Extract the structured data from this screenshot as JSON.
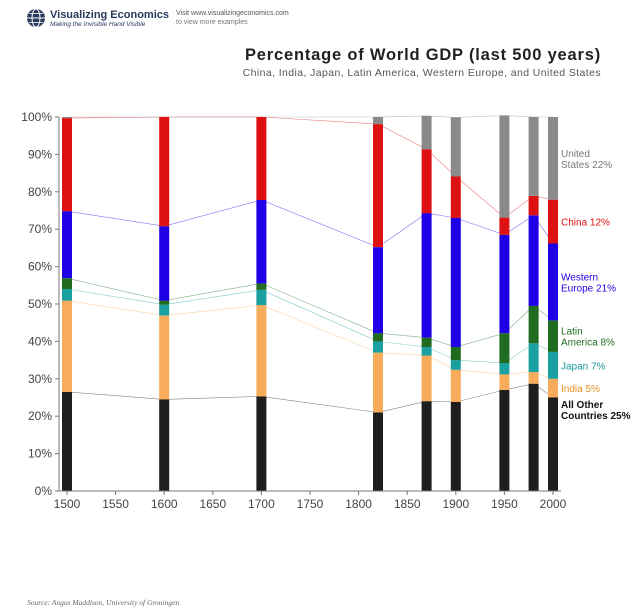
{
  "header": {
    "brand_name": "Visualizing Economics",
    "brand_tagline": "Making the Invisible Hand Visible",
    "visit_url": "Visit www.visualizingeconomics.com",
    "visit_more": "to view more examples"
  },
  "source": "Source: Angus Maddison, University of Groningen",
  "chart_data": {
    "type": "bar",
    "stacked": true,
    "title": "Percentage of World GDP (last 500 years)",
    "subtitle": "China, India, Japan, Latin America, Western Europe, and United States",
    "xlabel": "",
    "ylabel": "",
    "x": [
      1500,
      1600,
      1700,
      1820,
      1870,
      1900,
      1950,
      1980,
      2000
    ],
    "x_ticks": [
      1500,
      1550,
      1600,
      1650,
      1700,
      1750,
      1800,
      1850,
      1900,
      1950,
      2000
    ],
    "y_ticks": [
      "0%",
      "10%",
      "20%",
      "30%",
      "40%",
      "50%",
      "60%",
      "70%",
      "80%",
      "90%",
      "100%"
    ],
    "xlim": [
      1500,
      2000
    ],
    "ylim": [
      0,
      100
    ],
    "grid": false,
    "legend": "right, labels beside the last bar",
    "series": [
      {
        "label": "All Other Countries 25%",
        "color": "#1e1e1e",
        "values": [
          26.5,
          24.5,
          25.3,
          21,
          24,
          23.8,
          27,
          28.7,
          25
        ]
      },
      {
        "label": "India 5%",
        "color": "#f7ac5c",
        "values": [
          24.4,
          22.4,
          24.4,
          16,
          12.2,
          8.6,
          4.2,
          3.1,
          5
        ]
      },
      {
        "label": "Japan 7%",
        "color": "#1aa0a0",
        "values": [
          3.1,
          2.9,
          4.1,
          3,
          2.3,
          2.6,
          3,
          7.7,
          7.2
        ]
      },
      {
        "label": "Latin America 8%",
        "color": "#1f6b1f",
        "values": [
          2.9,
          1.1,
          1.7,
          2.2,
          2.5,
          3.5,
          8,
          10,
          8.4
        ]
      },
      {
        "label": "Western Europe 21%",
        "color": "#1f00e6",
        "values": [
          17.9,
          19.9,
          22.3,
          23,
          33.3,
          34.5,
          26.3,
          24.2,
          20.6
        ]
      },
      {
        "label": "China 12%",
        "color": "#dd1111",
        "values": [
          24.9,
          29.2,
          22.2,
          32.9,
          17.1,
          11.1,
          4.6,
          5.2,
          11.7
        ]
      },
      {
        "label": "United States 22%",
        "color": "#8a8a8a",
        "values": [
          0.3,
          0,
          0,
          1.9,
          8.9,
          15.8,
          27.3,
          21.1,
          22.1
        ]
      }
    ]
  }
}
